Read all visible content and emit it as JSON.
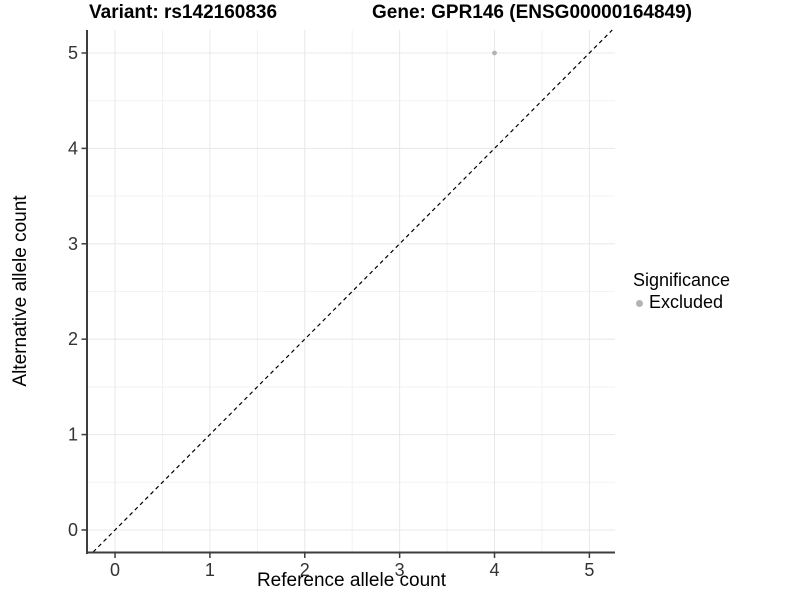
{
  "chart_data": {
    "type": "scatter",
    "title_left": "Variant: rs142160836",
    "title_right": "Gene: GPR146 (ENSG00000164849)",
    "xlabel": "Reference allele count",
    "ylabel": "Alternative allele count",
    "x_ticks": [
      0,
      1,
      2,
      3,
      4,
      5
    ],
    "y_ticks": [
      0,
      1,
      2,
      3,
      4,
      5
    ],
    "x_minor": [
      0.5,
      1.5,
      2.5,
      3.5,
      4.5
    ],
    "y_minor": [
      0.5,
      1.5,
      2.5,
      3.5,
      4.5
    ],
    "xlim": [
      -0.285,
      5.27
    ],
    "ylim": [
      -0.231,
      5.241
    ],
    "grid": true,
    "legend_position": "right",
    "points": [
      {
        "x": 4,
        "y": 5,
        "series": "Excluded"
      }
    ],
    "reference_line": {
      "type": "identity",
      "equation": "y = x",
      "style": "dashed"
    },
    "legend": {
      "title": "Significance",
      "items": [
        {
          "label": "Excluded",
          "color": "#b3b3b3"
        }
      ]
    },
    "colors": {
      "point_excluded": "#b3b3b3",
      "grid_major": "#e8e8e8",
      "grid_minor": "#f2f2f2",
      "axis_line": "#3d3d3d",
      "tick_label": "#333333",
      "reference_line": "#000000",
      "background": "#ffffff"
    }
  }
}
